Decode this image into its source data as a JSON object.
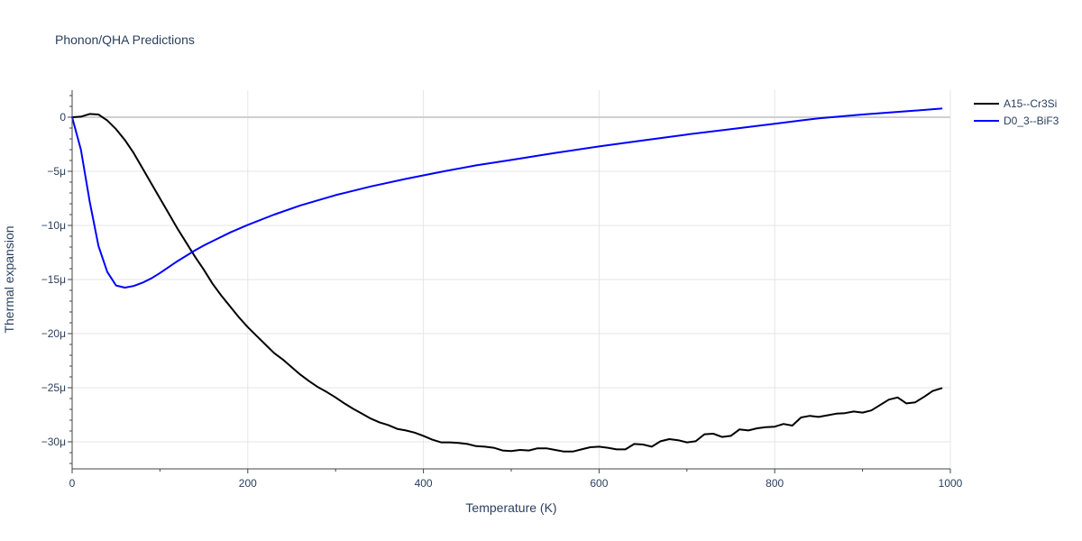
{
  "chart_data": {
    "type": "line",
    "title": "Phonon/QHA Predictions",
    "xlabel": "Temperature (K)",
    "ylabel": "Thermal expansion",
    "xlim": [
      0,
      1000
    ],
    "ylim": [
      -32.5,
      2.5
    ],
    "x_ticks": [
      0,
      200,
      400,
      600,
      800,
      1000
    ],
    "x_tick_labels": [
      "0",
      "200",
      "400",
      "600",
      "800",
      "1000"
    ],
    "y_ticks": [
      0,
      -5,
      -10,
      -15,
      -20,
      -25,
      -30
    ],
    "y_tick_labels": [
      "0",
      "−5μ",
      "−10μ",
      "−15μ",
      "−20μ",
      "−25μ",
      "−30μ"
    ],
    "grid": true,
    "legend_position": "top-right",
    "series": [
      {
        "name": "A15--Cr3Si",
        "color": "#000000",
        "x": [
          0,
          10,
          20,
          30,
          40,
          50,
          60,
          70,
          80,
          90,
          100,
          110,
          120,
          130,
          140,
          150,
          160,
          170,
          180,
          190,
          200,
          210,
          220,
          230,
          240,
          250,
          260,
          270,
          280,
          290,
          300,
          310,
          320,
          330,
          340,
          350,
          360,
          370,
          380,
          390,
          400,
          410,
          420,
          430,
          440,
          450,
          460,
          470,
          480,
          490,
          500,
          510,
          520,
          530,
          540,
          550,
          560,
          570,
          580,
          590,
          600,
          610,
          620,
          630,
          640,
          650,
          660,
          670,
          680,
          690,
          700,
          710,
          720,
          730,
          740,
          750,
          760,
          770,
          780,
          790,
          800,
          810,
          820,
          830,
          840,
          850,
          860,
          870,
          880,
          890,
          900,
          910,
          920,
          930,
          940,
          950,
          960,
          970,
          980,
          990
        ],
        "values": [
          0,
          0.05,
          0.3,
          0.25,
          -0.3,
          -1.1,
          -2.1,
          -3.3,
          -4.7,
          -6.1,
          -7.5,
          -8.9,
          -10.3,
          -11.6,
          -12.9,
          -14.1,
          -15.4,
          -16.5,
          -17.5,
          -18.5,
          -19.4,
          -20.2,
          -21,
          -21.8,
          -22.4,
          -23.1,
          -23.8,
          -24.4,
          -24.95,
          -25.4,
          -25.9,
          -26.45,
          -26.95,
          -27.4,
          -27.85,
          -28.2,
          -28.45,
          -28.8,
          -28.95,
          -29.15,
          -29.45,
          -29.8,
          -30.05,
          -30.05,
          -30.1,
          -30.2,
          -30.4,
          -30.45,
          -30.55,
          -30.8,
          -30.85,
          -30.75,
          -30.8,
          -30.6,
          -30.6,
          -30.75,
          -30.9,
          -30.9,
          -30.7,
          -30.5,
          -30.45,
          -30.55,
          -30.7,
          -30.7,
          -30.2,
          -30.25,
          -30.45,
          -29.95,
          -29.75,
          -29.85,
          -30.05,
          -29.95,
          -29.3,
          -29.25,
          -29.55,
          -29.45,
          -28.85,
          -28.95,
          -28.75,
          -28.65,
          -28.6,
          -28.35,
          -28.5,
          -27.75,
          -27.6,
          -27.7,
          -27.55,
          -27.4,
          -27.35,
          -27.2,
          -27.3,
          -27.1,
          -26.6,
          -26.1,
          -25.9,
          -26.45,
          -26.35,
          -25.85,
          -25.3,
          -25.05
        ]
      },
      {
        "name": "D0_3--BiF3",
        "color": "#0000ff",
        "x": [
          0,
          10,
          20,
          30,
          40,
          50,
          60,
          70,
          80,
          90,
          100,
          110,
          120,
          130,
          140,
          150,
          160,
          180,
          200,
          230,
          260,
          300,
          340,
          380,
          420,
          460,
          500,
          550,
          600,
          650,
          700,
          750,
          800,
          850,
          900,
          950,
          990
        ],
        "values": [
          0,
          -3,
          -7.8,
          -11.9,
          -14.3,
          -15.55,
          -15.75,
          -15.6,
          -15.3,
          -14.9,
          -14.4,
          -13.85,
          -13.3,
          -12.8,
          -12.3,
          -11.85,
          -11.45,
          -10.65,
          -9.95,
          -9,
          -8.15,
          -7.2,
          -6.4,
          -5.7,
          -5.05,
          -4.45,
          -3.95,
          -3.3,
          -2.7,
          -2.15,
          -1.6,
          -1.1,
          -0.6,
          -0.1,
          0.25,
          0.55,
          0.8
        ]
      }
    ]
  }
}
